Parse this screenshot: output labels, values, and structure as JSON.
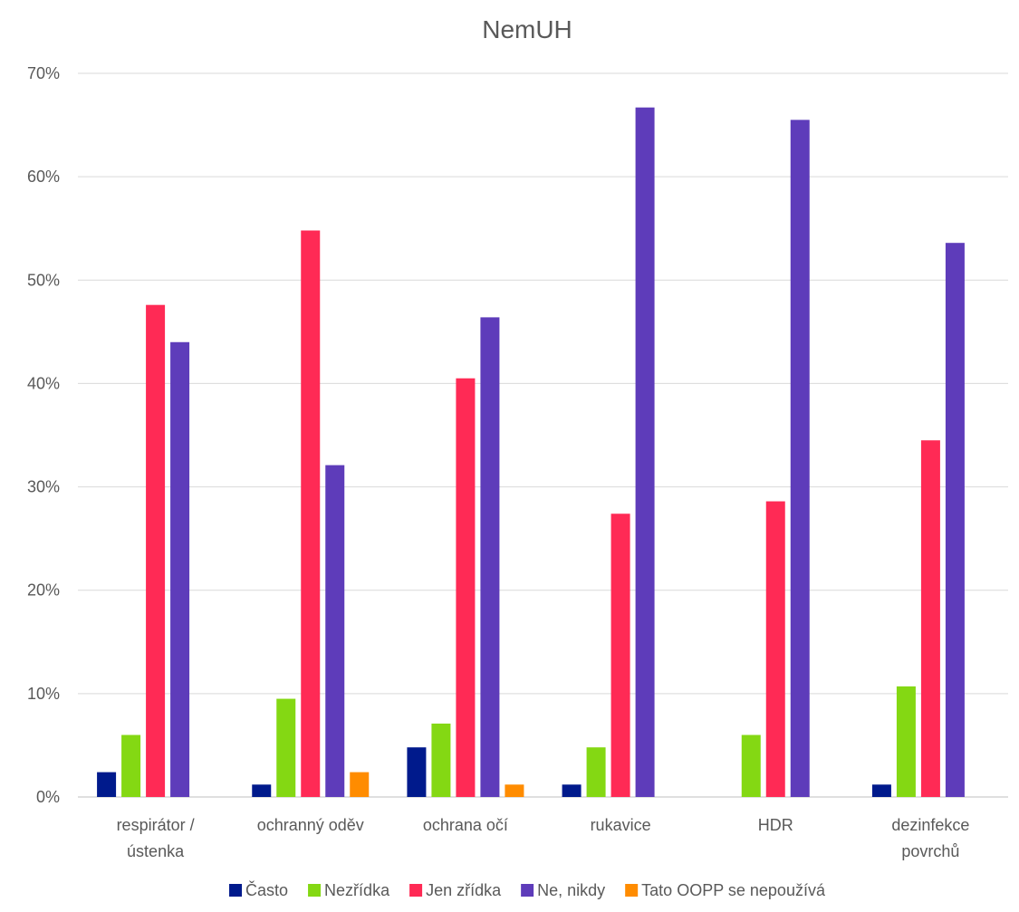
{
  "chart_data": {
    "type": "bar",
    "title": "NemUH",
    "xlabel": "",
    "ylabel": "",
    "ylim": [
      0,
      70
    ],
    "y_unit": "%",
    "y_ticks": [
      0,
      10,
      20,
      30,
      40,
      50,
      60,
      70
    ],
    "y_tick_labels": [
      "0%",
      "10%",
      "20%",
      "30%",
      "40%",
      "50%",
      "60%",
      "70%"
    ],
    "grid": true,
    "legend_position": "bottom",
    "categories": [
      [
        "respirátor /",
        "ústenka"
      ],
      [
        "ochranný oděv"
      ],
      [
        "ochrana očí"
      ],
      [
        "rukavice"
      ],
      [
        "HDR"
      ],
      [
        "dezinfekce",
        "povrchů"
      ]
    ],
    "series": [
      {
        "name": "Často",
        "color": "#001A8C",
        "values": [
          2.4,
          1.2,
          4.8,
          1.2,
          0,
          1.2
        ]
      },
      {
        "name": "Nezřídka",
        "color": "#84D813",
        "values": [
          6.0,
          9.5,
          7.1,
          4.8,
          6.0,
          10.7
        ]
      },
      {
        "name": "Jen zřídka",
        "color": "#FF2A55",
        "values": [
          47.6,
          54.8,
          40.5,
          27.4,
          28.6,
          34.5
        ]
      },
      {
        "name": "Ne, nikdy",
        "color": "#5E3CBA",
        "values": [
          44.0,
          32.1,
          46.4,
          66.7,
          65.5,
          53.6
        ]
      },
      {
        "name": "Tato OOPP se nepoužívá",
        "color": "#FF8C00",
        "values": [
          0,
          2.4,
          1.2,
          0,
          0,
          0
        ]
      }
    ]
  }
}
